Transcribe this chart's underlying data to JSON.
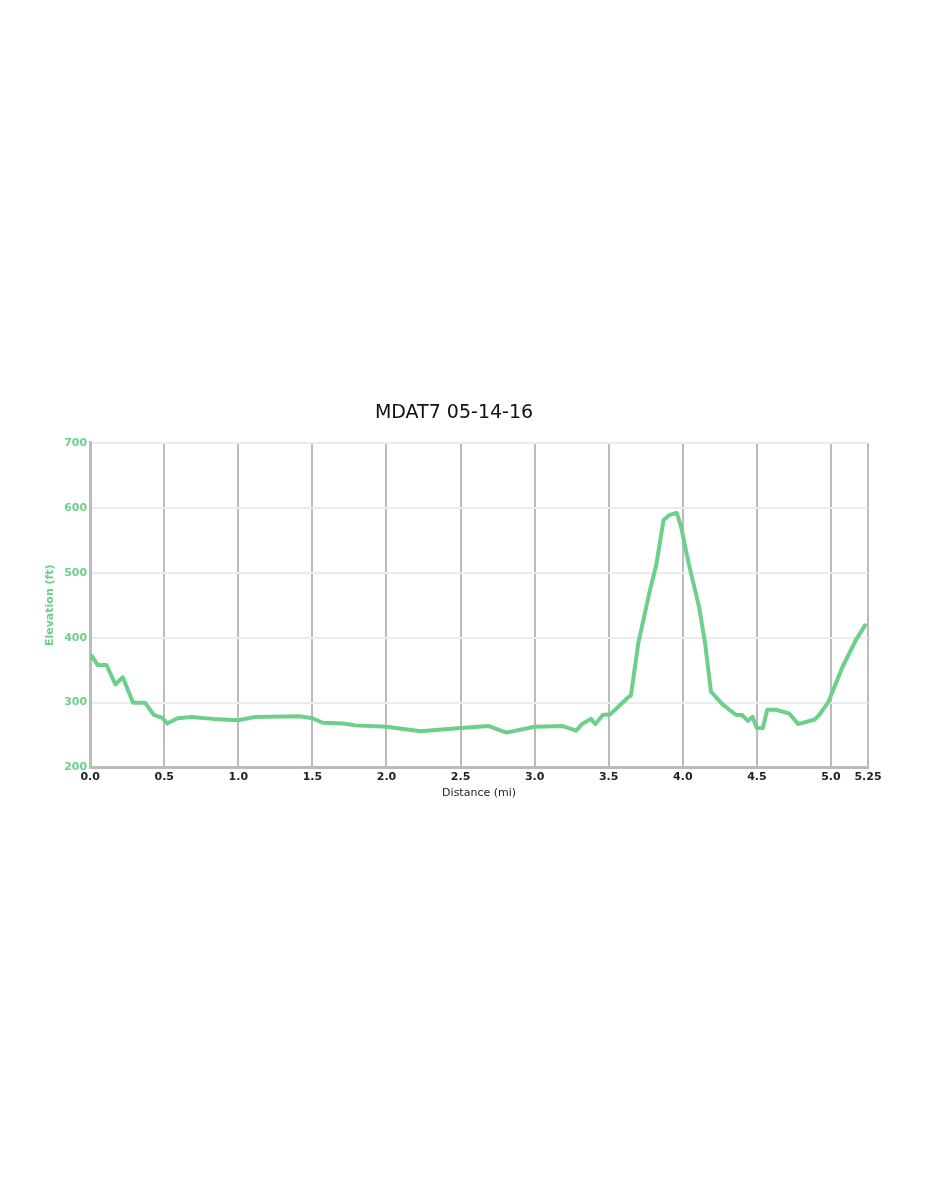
{
  "chart_data": {
    "type": "line",
    "title": "MDAT7 05-14-16",
    "xlabel": "Distance (mi)",
    "ylabel": "Elevation (ft)",
    "x": [
      0.0,
      0.01,
      0.05,
      0.11,
      0.17,
      0.22,
      0.29,
      0.37,
      0.43,
      0.49,
      0.52,
      0.59,
      0.68,
      0.83,
      1.0,
      1.11,
      1.41,
      1.5,
      1.57,
      1.71,
      1.79,
      2.0,
      2.23,
      2.5,
      2.69,
      2.81,
      3.0,
      3.19,
      3.28,
      3.32,
      3.38,
      3.41,
      3.46,
      3.51,
      3.63,
      3.65,
      3.7,
      3.78,
      3.82,
      3.87,
      3.91,
      3.96,
      3.99,
      4.04,
      4.11,
      4.15,
      4.19,
      4.27,
      4.36,
      4.4,
      4.44,
      4.47,
      4.5,
      4.54,
      4.57,
      4.63,
      4.72,
      4.78,
      4.89,
      4.92,
      4.98,
      5.08,
      5.17,
      5.23
    ],
    "series": [
      {
        "color": "#6ccf8c",
        "values": [
          368,
          372,
          358,
          358,
          328,
          339,
          300,
          300,
          281,
          276,
          268,
          276,
          278,
          275,
          273,
          278,
          279,
          276,
          269,
          268,
          265,
          263,
          256,
          261,
          264,
          254,
          263,
          264,
          257,
          267,
          275,
          267,
          281,
          282,
          308,
          311,
          392,
          475,
          511,
          581,
          589,
          592,
          569,
          514,
          447,
          392,
          317,
          297,
          281,
          281,
          272,
          278,
          261,
          261,
          289,
          289,
          283,
          267,
          274,
          281,
          300,
          356,
          397,
          419
        ]
      }
    ],
    "xlim": [
      0,
      5.25
    ],
    "xticks": [
      {
        "value": 0,
        "label": "0.0"
      },
      {
        "value": 0.5,
        "label": "0.5"
      },
      {
        "value": 1,
        "label": "1.0"
      },
      {
        "value": 1.5,
        "label": "1.5"
      },
      {
        "value": 2,
        "label": "2.0"
      },
      {
        "value": 2.5,
        "label": "2.5"
      },
      {
        "value": 3,
        "label": "3.0"
      },
      {
        "value": 3.5,
        "label": "3.5"
      },
      {
        "value": 4,
        "label": "4.0"
      },
      {
        "value": 4.5,
        "label": "4.5"
      },
      {
        "value": 5,
        "label": "5.0"
      },
      {
        "value": 5.25,
        "label": "5.25"
      }
    ],
    "ylim": [
      200,
      700
    ],
    "yticks": [
      200,
      300,
      400,
      500,
      600,
      700
    ],
    "grid": true,
    "marker": "none",
    "line_style": "solid",
    "legend": false
  }
}
